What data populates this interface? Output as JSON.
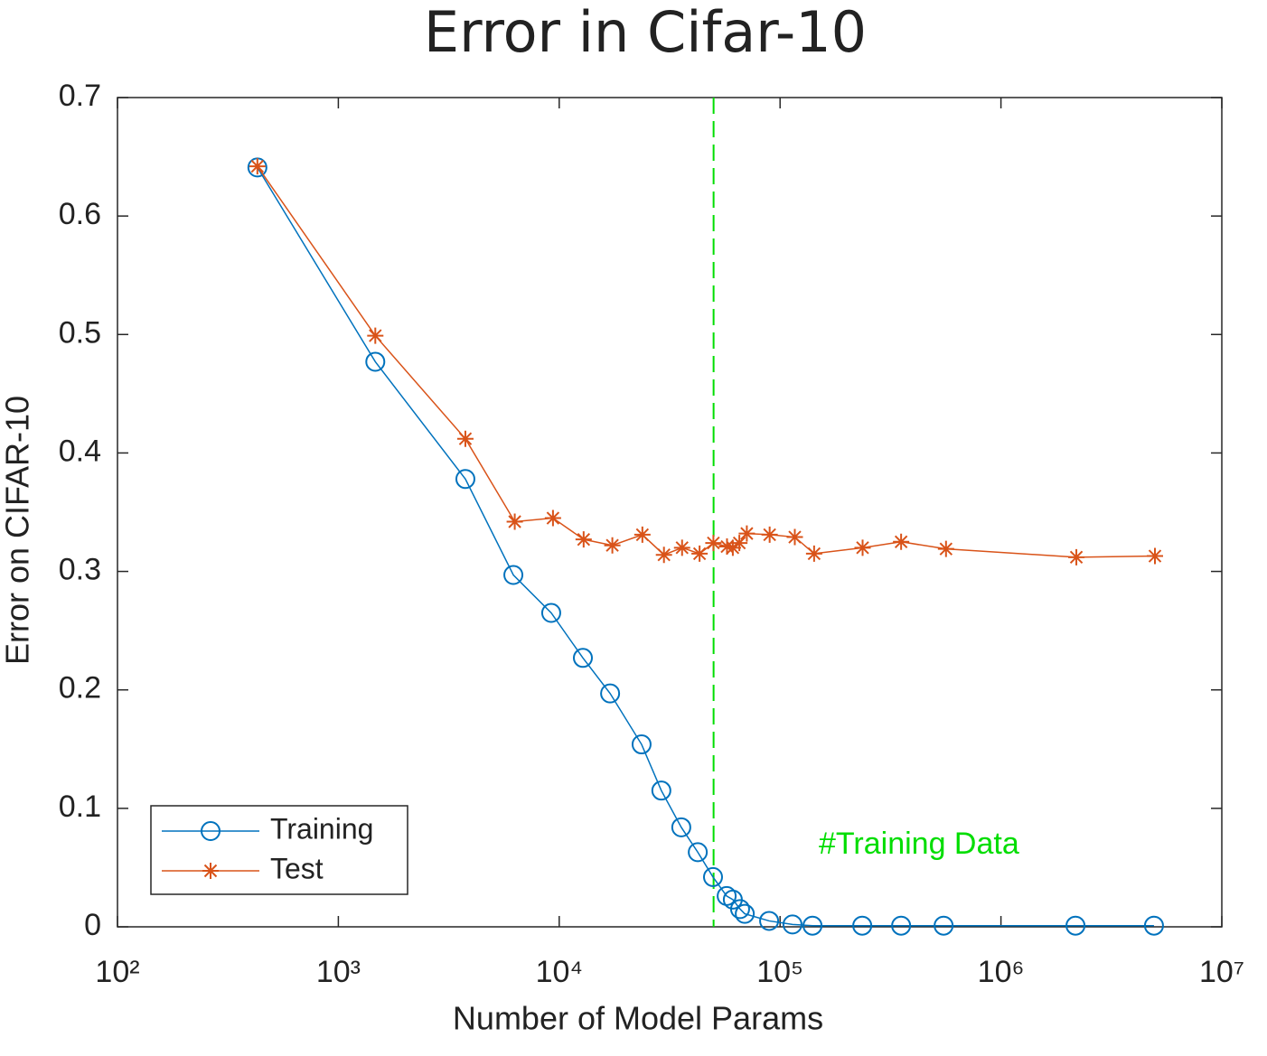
{
  "chart_data": {
    "type": "line",
    "title": "Error in Cifar-10",
    "xlabel": "Number of Model Params",
    "ylabel": "Error on CIFAR-10",
    "xscale": "log",
    "xlim": [
      100,
      10000000
    ],
    "xticks": [
      {
        "value": 100,
        "label": "10²"
      },
      {
        "value": 1000,
        "label": "10³"
      },
      {
        "value": 10000,
        "label": "10⁴"
      },
      {
        "value": 100000,
        "label": "10⁵"
      },
      {
        "value": 1000000,
        "label": "10⁶"
      },
      {
        "value": 10000000,
        "label": "10⁷"
      }
    ],
    "ylim": [
      0,
      0.7
    ],
    "yticks": [
      0,
      0.1,
      0.2,
      0.3,
      0.4,
      0.5,
      0.6,
      0.7
    ],
    "grid": false,
    "legend": "lower left",
    "series": [
      {
        "name": "Training",
        "color": "#0072bd",
        "marker": "circle",
        "x": [
          430,
          1470,
          3760,
          6200,
          9200,
          12800,
          17000,
          23600,
          29000,
          35700,
          42400,
          49700,
          57300,
          61100,
          65900,
          69200,
          89200,
          113800,
          140200,
          235500,
          353200,
          550000,
          2175000,
          4930000
        ],
        "values": [
          0.641,
          0.477,
          0.378,
          0.297,
          0.265,
          0.227,
          0.197,
          0.154,
          0.115,
          0.084,
          0.063,
          0.042,
          0.026,
          0.023,
          0.015,
          0.011,
          0.005,
          0.002,
          0.001,
          0.001,
          0.001,
          0.001,
          0.001,
          0.001
        ]
      },
      {
        "name": "Test",
        "color": "#d95319",
        "marker": "asterisk",
        "x": [
          430,
          1470,
          3760,
          6290,
          9370,
          12900,
          17400,
          23800,
          29800,
          36000,
          43200,
          49900,
          57500,
          61100,
          65400,
          70700,
          89700,
          116600,
          142600,
          236400,
          353200,
          564000,
          2195000,
          4980000
        ],
        "values": [
          0.642,
          0.499,
          0.412,
          0.342,
          0.345,
          0.327,
          0.322,
          0.331,
          0.314,
          0.32,
          0.315,
          0.324,
          0.321,
          0.32,
          0.324,
          0.332,
          0.331,
          0.329,
          0.315,
          0.32,
          0.325,
          0.319,
          0.312,
          0.313
        ]
      }
    ],
    "reference_lines": [
      {
        "x": 50000,
        "color": "#00dd00",
        "style": "dashed"
      }
    ],
    "annotations": [
      {
        "text": "#Training Data",
        "color": "#00dd00"
      }
    ]
  }
}
